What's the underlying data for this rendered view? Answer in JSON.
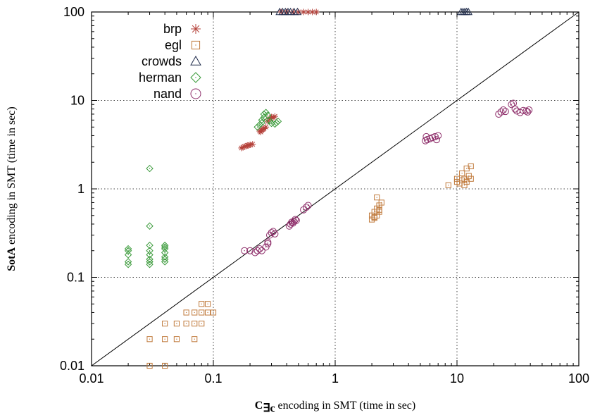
{
  "chart_data": {
    "type": "scatter",
    "xscale": "log",
    "yscale": "log",
    "xlim": [
      0.01,
      100
    ],
    "ylim": [
      0.01,
      100
    ],
    "grid": true,
    "legend_position": "top-left",
    "reference_line": "y = x",
    "x_ticks": [
      "0.01",
      "0.1",
      "1",
      "10",
      "100"
    ],
    "y_ticks": [
      "0.01",
      "0.1",
      "1",
      "10",
      "100"
    ],
    "xlabel": {
      "main": "C",
      "subscript": "∃c",
      "rest": " encoding in SMT (time in sec)"
    },
    "ylabel": {
      "bold": "SotA",
      "rest": " encoding in SMT (time in sec)"
    },
    "series": [
      {
        "name": "brp",
        "marker": "asterisk",
        "color": "#b5413a",
        "points": [
          [
            0.17,
            2.9
          ],
          [
            0.18,
            3.0
          ],
          [
            0.19,
            3.1
          ],
          [
            0.2,
            3.15
          ],
          [
            0.21,
            3.2
          ],
          [
            0.175,
            2.95
          ],
          [
            0.185,
            3.05
          ],
          [
            0.195,
            3.1
          ],
          [
            0.24,
            4.5
          ],
          [
            0.25,
            4.6
          ],
          [
            0.26,
            4.8
          ],
          [
            0.27,
            5.0
          ],
          [
            0.245,
            4.4
          ],
          [
            0.255,
            4.7
          ],
          [
            0.28,
            5.8
          ],
          [
            0.29,
            6.2
          ],
          [
            0.3,
            6.5
          ],
          [
            0.31,
            6.4
          ],
          [
            0.32,
            6.6
          ],
          [
            0.36,
            100
          ],
          [
            0.4,
            100
          ],
          [
            0.45,
            100
          ],
          [
            0.5,
            100
          ],
          [
            0.55,
            100
          ],
          [
            0.6,
            100
          ],
          [
            0.65,
            100
          ],
          [
            0.7,
            100
          ]
        ]
      },
      {
        "name": "egl",
        "marker": "square",
        "color": "#c07a3c",
        "points": [
          [
            0.03,
            0.01
          ],
          [
            0.04,
            0.01
          ],
          [
            0.03,
            0.02
          ],
          [
            0.04,
            0.02
          ],
          [
            0.05,
            0.02
          ],
          [
            0.07,
            0.02
          ],
          [
            0.04,
            0.03
          ],
          [
            0.05,
            0.03
          ],
          [
            0.06,
            0.03
          ],
          [
            0.07,
            0.03
          ],
          [
            0.08,
            0.03
          ],
          [
            0.06,
            0.04
          ],
          [
            0.07,
            0.04
          ],
          [
            0.08,
            0.04
          ],
          [
            0.09,
            0.04
          ],
          [
            0.1,
            0.04
          ],
          [
            0.08,
            0.05
          ],
          [
            0.09,
            0.05
          ],
          [
            2.0,
            0.45
          ],
          [
            2.1,
            0.47
          ],
          [
            2.2,
            0.5
          ],
          [
            2.3,
            0.55
          ],
          [
            2.0,
            0.5
          ],
          [
            2.1,
            0.55
          ],
          [
            2.2,
            0.6
          ],
          [
            2.3,
            0.65
          ],
          [
            2.4,
            0.7
          ],
          [
            2.2,
            0.8
          ],
          [
            2.1,
            0.48
          ],
          [
            2.3,
            0.58
          ],
          [
            8.5,
            1.1
          ],
          [
            10,
            1.2
          ],
          [
            10.5,
            1.15
          ],
          [
            11,
            1.25
          ],
          [
            11.5,
            1.3
          ],
          [
            12,
            1.2
          ],
          [
            12.5,
            1.4
          ],
          [
            13,
            1.3
          ],
          [
            11,
            1.5
          ],
          [
            12,
            1.7
          ],
          [
            13,
            1.8
          ],
          [
            10,
            1.3
          ],
          [
            11.5,
            1.1
          ]
        ]
      },
      {
        "name": "crowds",
        "marker": "triangle",
        "color": "#1e2a4a",
        "points": [
          [
            0.35,
            100
          ],
          [
            0.37,
            100
          ],
          [
            0.39,
            100
          ],
          [
            0.41,
            100
          ],
          [
            0.43,
            100
          ],
          [
            0.46,
            100
          ],
          [
            0.49,
            100
          ],
          [
            10.8,
            100
          ],
          [
            11.2,
            100
          ],
          [
            11.6,
            100
          ],
          [
            12.0,
            100
          ],
          [
            12.4,
            100
          ]
        ]
      },
      {
        "name": "herman",
        "marker": "diamond",
        "color": "#3a9a3a",
        "points": [
          [
            0.02,
            0.14
          ],
          [
            0.02,
            0.15
          ],
          [
            0.02,
            0.18
          ],
          [
            0.02,
            0.2
          ],
          [
            0.02,
            0.21
          ],
          [
            0.03,
            0.14
          ],
          [
            0.03,
            0.15
          ],
          [
            0.03,
            0.16
          ],
          [
            0.03,
            0.18
          ],
          [
            0.03,
            0.2
          ],
          [
            0.03,
            0.23
          ],
          [
            0.03,
            0.38
          ],
          [
            0.03,
            1.7
          ],
          [
            0.04,
            0.15
          ],
          [
            0.04,
            0.16
          ],
          [
            0.04,
            0.17
          ],
          [
            0.04,
            0.19
          ],
          [
            0.04,
            0.21
          ],
          [
            0.04,
            0.22
          ],
          [
            0.04,
            0.23
          ],
          [
            0.23,
            5.0
          ],
          [
            0.24,
            5.3
          ],
          [
            0.25,
            5.6
          ],
          [
            0.25,
            6.0
          ],
          [
            0.26,
            6.4
          ],
          [
            0.26,
            7.0
          ],
          [
            0.27,
            7.3
          ],
          [
            0.28,
            6.8
          ],
          [
            0.29,
            5.9
          ],
          [
            0.3,
            5.5
          ],
          [
            0.32,
            5.4
          ],
          [
            0.33,
            5.6
          ],
          [
            0.34,
            5.8
          ]
        ]
      },
      {
        "name": "nand",
        "marker": "circle",
        "color": "#8e2e6a",
        "points": [
          [
            0.18,
            0.2
          ],
          [
            0.2,
            0.2
          ],
          [
            0.22,
            0.19
          ],
          [
            0.23,
            0.2
          ],
          [
            0.24,
            0.21
          ],
          [
            0.25,
            0.2
          ],
          [
            0.27,
            0.22
          ],
          [
            0.28,
            0.25
          ],
          [
            0.29,
            0.3
          ],
          [
            0.3,
            0.32
          ],
          [
            0.31,
            0.33
          ],
          [
            0.32,
            0.31
          ],
          [
            0.28,
            0.24
          ],
          [
            0.42,
            0.38
          ],
          [
            0.43,
            0.4
          ],
          [
            0.44,
            0.42
          ],
          [
            0.45,
            0.41
          ],
          [
            0.46,
            0.43
          ],
          [
            0.47,
            0.45
          ],
          [
            0.48,
            0.44
          ],
          [
            0.55,
            0.58
          ],
          [
            0.58,
            0.62
          ],
          [
            0.6,
            0.65
          ],
          [
            5.5,
            3.5
          ],
          [
            5.7,
            3.6
          ],
          [
            6.0,
            3.7
          ],
          [
            6.3,
            3.8
          ],
          [
            6.6,
            3.9
          ],
          [
            7.0,
            4.0
          ],
          [
            5.6,
            3.9
          ],
          [
            6.8,
            3.6
          ],
          [
            22,
            7.0
          ],
          [
            23,
            7.4
          ],
          [
            24,
            7.8
          ],
          [
            25,
            7.5
          ],
          [
            28,
            9.0
          ],
          [
            29,
            9.3
          ],
          [
            30,
            8.0
          ],
          [
            31,
            7.6
          ],
          [
            33,
            7.3
          ],
          [
            35,
            7.7
          ],
          [
            37,
            7.6
          ],
          [
            38,
            7.4
          ],
          [
            39,
            7.8
          ]
        ]
      }
    ]
  }
}
